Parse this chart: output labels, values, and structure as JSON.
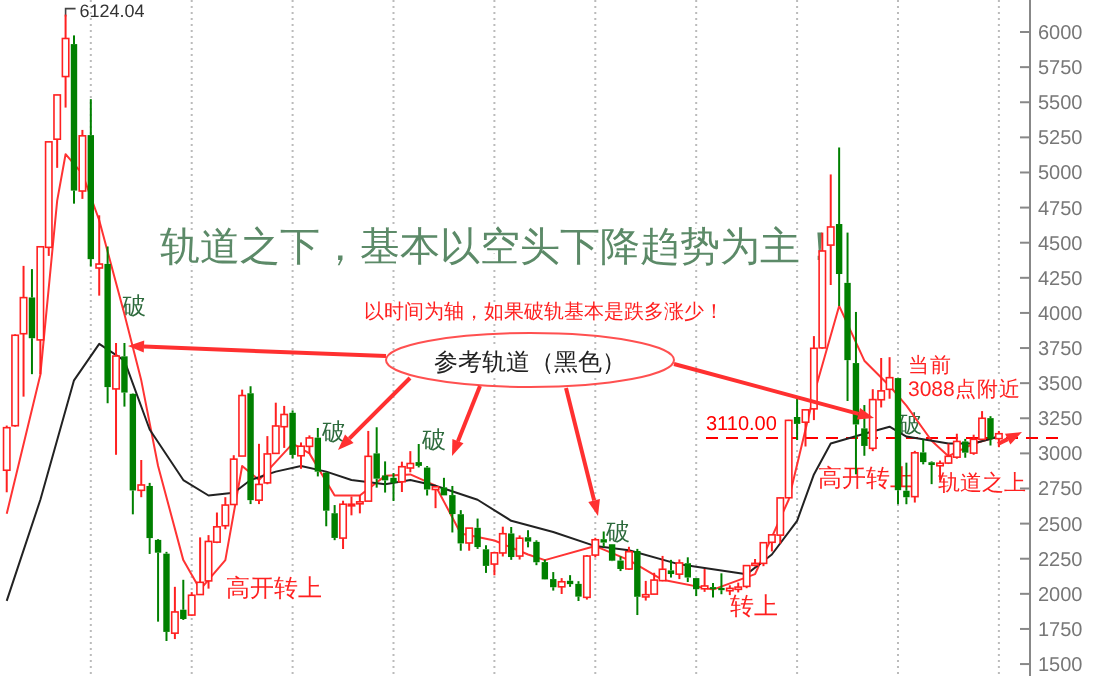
{
  "chart_data": {
    "type": "candlestick",
    "categories": [
      null,
      null,
      null,
      null,
      null,
      null,
      null,
      null,
      null,
      null,
      null,
      null,
      null,
      null,
      null,
      null,
      null,
      null,
      null,
      null,
      null,
      null,
      null,
      null,
      null,
      null,
      null,
      null,
      null,
      null,
      null,
      null,
      null,
      null,
      null,
      null,
      null,
      null,
      null,
      null,
      null,
      null,
      null,
      null,
      null,
      null,
      null,
      null,
      null,
      null,
      null,
      null,
      null,
      null,
      null,
      null,
      null,
      null,
      null,
      null,
      null,
      null,
      null,
      null,
      null,
      null,
      null,
      null,
      null,
      null,
      null,
      null,
      null,
      null,
      null,
      null,
      null,
      null,
      null,
      null,
      null,
      null,
      null,
      null,
      null,
      null,
      null,
      null,
      null,
      null,
      null,
      null,
      null,
      null,
      null,
      null,
      null,
      null,
      null,
      null,
      null,
      null,
      null,
      null,
      null,
      null,
      null,
      null,
      null,
      null,
      null,
      null,
      null,
      null,
      null,
      null,
      null,
      null,
      null
    ],
    "ohlc": [
      [
        2880,
        3198,
        2723,
        3183
      ],
      [
        3197,
        3848,
        3190,
        3841
      ],
      [
        3852,
        4335,
        3404,
        4109
      ],
      [
        4110,
        4312,
        3564,
        3820
      ],
      [
        3808,
        4471,
        3563,
        4471
      ],
      [
        4467,
        5219,
        4406,
        5218
      ],
      [
        5237,
        5553,
        5033,
        5552
      ],
      [
        5683,
        6124.04,
        5462,
        5954
      ],
      [
        5914,
        5976,
        4778,
        4871
      ],
      [
        4868,
        5303,
        4812,
        5261
      ],
      [
        5266,
        5522,
        4330,
        4383
      ],
      [
        4320,
        4695,
        4123,
        4348
      ],
      [
        4349,
        4473,
        3357,
        3472
      ],
      [
        3459,
        3786,
        2990,
        3693
      ],
      [
        3691,
        3786,
        3333,
        3433
      ],
      [
        3424,
        3427,
        2566,
        2736
      ],
      [
        2737,
        2953,
        2688,
        2775
      ],
      [
        2768,
        2790,
        2284,
        2397
      ],
      [
        2384,
        2390,
        1802,
        2293
      ],
      [
        2286,
        2299,
        1664,
        1729
      ],
      [
        1720,
        2050,
        1678,
        1871
      ],
      [
        1887,
        2100,
        1814,
        1821
      ],
      [
        1849,
        2012,
        1844,
        1990
      ],
      [
        1995,
        2402,
        1995,
        2082
      ],
      [
        2092,
        2418,
        2037,
        2373
      ],
      [
        2368,
        2579,
        2361,
        2477
      ],
      [
        2485,
        2688,
        2460,
        2632
      ],
      [
        2636,
        2987,
        2632,
        2959
      ],
      [
        2981,
        3454,
        2981,
        3412
      ],
      [
        3428,
        3478,
        2639,
        2667
      ],
      [
        2667,
        3068,
        2639,
        2779
      ],
      [
        2790,
        3123,
        2780,
        2996
      ],
      [
        3000,
        3361,
        3000,
        3195
      ],
      [
        3190,
        3338,
        3039,
        3277
      ],
      [
        3289,
        3306,
        2963,
        2989
      ],
      [
        2983,
        3078,
        2890,
        3051
      ],
      [
        3050,
        3128,
        2997,
        3110
      ],
      [
        3112,
        3181,
        2836,
        2870
      ],
      [
        2863,
        2868,
        2481,
        2592
      ],
      [
        2574,
        2632,
        2382,
        2398
      ],
      [
        2397,
        2663,
        2319,
        2638
      ],
      [
        2637,
        2693,
        2559,
        2638
      ],
      [
        2641,
        2703,
        2573,
        2655
      ],
      [
        2660,
        3160,
        2660,
        2979
      ],
      [
        3000,
        3186,
        2756,
        2820
      ],
      [
        2843,
        2943,
        2721,
        2808
      ],
      [
        2826,
        2860,
        2661,
        2790
      ],
      [
        2798,
        2941,
        2725,
        2905
      ],
      [
        2896,
        3016,
        2865,
        2928
      ],
      [
        2938,
        3067,
        2900,
        2911
      ],
      [
        2899,
        2910,
        2700,
        2743
      ],
      [
        2743,
        2766,
        2610,
        2762
      ],
      [
        2758,
        2826,
        2701,
        2701
      ],
      [
        2703,
        2768,
        2437,
        2568
      ],
      [
        2567,
        2596,
        2307,
        2359
      ],
      [
        2362,
        2469,
        2307,
        2468
      ],
      [
        2470,
        2536,
        2320,
        2333
      ],
      [
        2317,
        2346,
        2149,
        2199
      ],
      [
        2212,
        2300,
        2132,
        2292
      ],
      [
        2291,
        2478,
        2266,
        2428
      ],
      [
        2430,
        2476,
        2242,
        2262
      ],
      [
        2269,
        2416,
        2244,
        2396
      ],
      [
        2403,
        2453,
        2331,
        2372
      ],
      [
        2370,
        2381,
        2204,
        2225
      ],
      [
        2226,
        2243,
        2102,
        2103
      ],
      [
        2105,
        2155,
        2023,
        2047
      ],
      [
        2050,
        2112,
        1999,
        2086
      ],
      [
        2093,
        2133,
        2050,
        2069
      ],
      [
        2071,
        2090,
        1949,
        1980
      ],
      [
        1975,
        2276,
        1959,
        2269
      ],
      [
        2276,
        2399,
        2259,
        2385
      ],
      [
        2389,
        2444,
        2333,
        2365
      ],
      [
        2353,
        2354,
        2233,
        2236
      ],
      [
        2237,
        2267,
        2162,
        2177
      ],
      [
        2177,
        2335,
        2171,
        2300
      ],
      [
        2305,
        2320,
        1849,
        1979
      ],
      [
        1978,
        2092,
        1952,
        1994
      ],
      [
        1998,
        2150,
        1996,
        2098
      ],
      [
        2094,
        2270,
        2089,
        2175
      ],
      [
        2167,
        2242,
        2116,
        2141
      ],
      [
        2140,
        2245,
        2105,
        2220
      ],
      [
        2218,
        2260,
        2084,
        2116
      ],
      [
        2112,
        2113,
        1984,
        2033
      ],
      [
        2036,
        2177,
        2014,
        2056
      ],
      [
        2048,
        2077,
        1974,
        2033
      ],
      [
        2042,
        2146,
        1997,
        2026
      ],
      [
        2022,
        2061,
        1991,
        2039
      ],
      [
        2032,
        2080,
        2010,
        2048
      ],
      [
        2053,
        2205,
        2040,
        2201
      ],
      [
        2203,
        2248,
        2195,
        2217
      ],
      [
        2217,
        2367,
        2197,
        2364
      ],
      [
        2367,
        2426,
        2302,
        2420
      ],
      [
        2418,
        2686,
        2357,
        2683
      ],
      [
        2684,
        3239,
        2684,
        3235
      ],
      [
        3259,
        3406,
        3095,
        3210
      ],
      [
        3222,
        3311,
        3049,
        3310
      ],
      [
        3317,
        3835,
        3237,
        3748
      ],
      [
        3751,
        4572,
        3745,
        4441
      ],
      [
        4483,
        4986,
        4199,
        4612
      ],
      [
        4633,
        5178,
        4050,
        4277
      ],
      [
        4214,
        4572,
        3373,
        3664
      ],
      [
        3643,
        4007,
        2851,
        3206
      ],
      [
        3178,
        3344,
        2983,
        3053
      ],
      [
        3036,
        3457,
        3016,
        3383
      ],
      [
        3382,
        3679,
        3327,
        3445
      ],
      [
        3456,
        3685,
        3389,
        3539
      ],
      [
        3536,
        3539,
        2638,
        2738
      ],
      [
        2734,
        2934,
        2638,
        2688
      ],
      [
        2692,
        3018,
        2650,
        3004
      ],
      [
        3007,
        3098,
        2922,
        2938
      ],
      [
        2937,
        2943,
        2781,
        2917
      ],
      [
        2912,
        2949,
        2807,
        2930
      ],
      [
        2931,
        3070,
        2924,
        2979
      ],
      [
        2973,
        3140,
        2962,
        3085
      ],
      [
        3085,
        3103,
        2969,
        3005
      ],
      [
        3002,
        3133,
        2990,
        3100
      ],
      [
        3100,
        3301,
        3097,
        3250
      ],
      [
        3251,
        3265,
        3056,
        3104
      ],
      [
        3105,
        3160,
        3044,
        3140
      ]
    ],
    "series": [
      {
        "type": "line",
        "color": "#ff3333",
        "values": [
          2570,
          null,
          null,
          null,
          3560,
          null,
          4800,
          5130,
          null,
          4990,
          null,
          4660,
          null,
          null,
          3990,
          null,
          3520,
          null,
          2910,
          null,
          null,
          2240,
          null,
          2030,
          null,
          null,
          2240,
          null,
          2910,
          null,
          2810,
          null,
          null,
          null,
          3070,
          null,
          3000,
          null,
          null,
          2700,
          null,
          null,
          2700,
          null,
          null,
          2840,
          null,
          null,
          2850,
          null,
          null,
          2770,
          null,
          null,
          2430,
          null,
          null,
          null,
          2380,
          null,
          null,
          null,
          2280,
          null,
          2240,
          null,
          null,
          null,
          null,
          null,
          2340,
          null,
          null,
          null,
          2240,
          null,
          null,
          null,
          2100,
          null,
          null,
          null,
          null,
          null,
          2030,
          null,
          null,
          null,
          null,
          2140,
          null,
          null,
          null,
          2670,
          null,
          null,
          3420,
          null,
          null,
          4050,
          null,
          null,
          3660,
          null,
          null,
          3480,
          null,
          3340,
          null,
          null,
          3090,
          null,
          2980,
          null,
          null,
          3070,
          null,
          null,
          3120
        ]
      },
      {
        "type": "line",
        "color": "#222222",
        "values": [
          1950,
          null,
          null,
          null,
          2670,
          null,
          null,
          null,
          3520,
          null,
          null,
          3780,
          null,
          null,
          3660,
          null,
          null,
          3170,
          null,
          null,
          null,
          2810,
          null,
          null,
          2700,
          null,
          null,
          2720,
          null,
          2810,
          null,
          null,
          2870,
          null,
          null,
          2910,
          null,
          null,
          2870,
          null,
          null,
          2810,
          null,
          null,
          null,
          2780,
          null,
          null,
          2810,
          null,
          null,
          2770,
          null,
          null,
          null,
          null,
          2670,
          null,
          null,
          null,
          2520,
          null,
          null,
          null,
          null,
          2440,
          null,
          null,
          null,
          null,
          2340,
          null,
          null,
          null,
          2310,
          null,
          null,
          null,
          null,
          null,
          2210,
          null,
          null,
          null,
          null,
          null,
          null,
          null,
          2140,
          null,
          null,
          2280,
          null,
          null,
          2520,
          null,
          2850,
          null,
          3070,
          null,
          null,
          null,
          3140,
          null,
          null,
          3190,
          null,
          3120,
          null,
          null,
          null,
          null,
          3070,
          null,
          null,
          3070,
          null,
          null,
          3120
        ]
      }
    ],
    "ylim": [
      1415,
      6228
    ],
    "yticks": [
      1500,
      1750,
      2000,
      2250,
      2500,
      2750,
      3000,
      3250,
      3500,
      3750,
      4000,
      4250,
      4500,
      4750,
      5000,
      5250,
      5500,
      5750,
      6000
    ],
    "tick_labels": "y",
    "grid": "x",
    "ref_lines": [
      {
        "axis": "y",
        "value": 3110,
        "label": "3110.00",
        "color": "#ff0000",
        "line_style": "dashed"
      }
    ],
    "annotations": [
      "轨道之下，基本以空头下降趋势为主！",
      "以时间为轴，如果破轨基本是跌多涨少！",
      "参考轨道（黑色）",
      "破",
      "破",
      "破",
      "破",
      "破",
      "高开转上",
      "高开转上",
      "转上",
      "当前",
      "3088点附近",
      "轨道之上",
      "6124.04"
    ]
  }
}
